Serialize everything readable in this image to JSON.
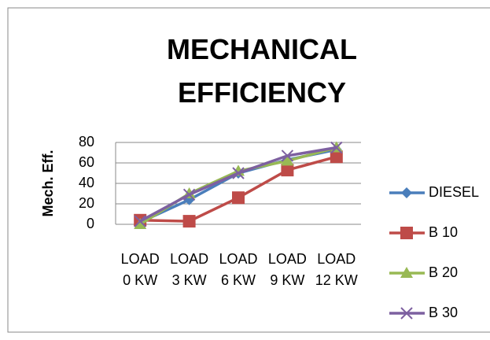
{
  "chart_data": {
    "type": "line",
    "title": "MECHANICAL EFFICIENCY",
    "y_label": "Mech. Eff.",
    "categories": [
      "LOAD 0 KW",
      "LOAD 3 KW",
      "LOAD 6 KW",
      "LOAD 9 KW",
      "LOAD 12 KW"
    ],
    "series": [
      {
        "name": "DIESEL",
        "color": "#4a7ebb",
        "marker": "diamond",
        "values": [
          2,
          24,
          50,
          63,
          73
        ]
      },
      {
        "name": "B 10",
        "color": "#be4b48",
        "marker": "square",
        "values": [
          4,
          3,
          26,
          53,
          66
        ]
      },
      {
        "name": "B 20",
        "color": "#98b954",
        "marker": "triangle",
        "values": [
          0,
          30,
          52,
          62,
          75
        ]
      },
      {
        "name": "B 30",
        "color": "#7d60a0",
        "marker": "x",
        "values": [
          3,
          29,
          50,
          67,
          75
        ]
      }
    ],
    "ylim": [
      0,
      80
    ],
    "yticks": [
      0,
      20,
      40,
      60,
      80
    ],
    "grid": true,
    "legend": "right"
  }
}
